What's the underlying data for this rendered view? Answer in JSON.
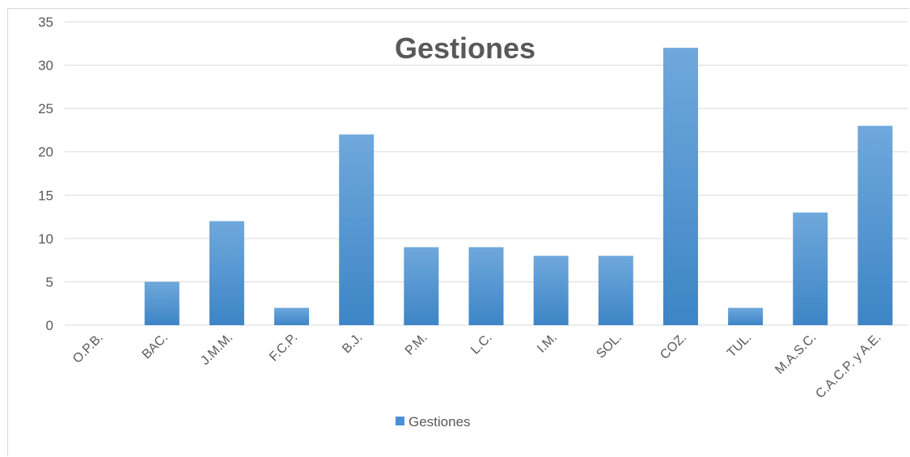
{
  "chart_data": {
    "type": "bar",
    "title": "Gestiones",
    "categories": [
      "O.P.B.",
      "BAC.",
      "J.M.M.",
      "F.C.P.",
      "B.J.",
      "P.M.",
      "L.C.",
      "I.M.",
      "SOL.",
      "COZ.",
      "TUL.",
      "M.A.S.C.",
      "C.A.C.P. y A.E."
    ],
    "series": [
      {
        "name": "Gestiones",
        "values": [
          0,
          5,
          12,
          2,
          22,
          9,
          9,
          8,
          8,
          32,
          2,
          13,
          23
        ]
      }
    ],
    "xlabel": "",
    "ylabel": "",
    "ylim": [
      0,
      35
    ],
    "yticks": [
      0,
      5,
      10,
      15,
      20,
      25,
      30,
      35
    ],
    "grid": true,
    "legend": "bottom",
    "colors": {
      "bar_top": "#6fa8dc",
      "bar_bottom": "#3d85c6",
      "grid": "#d9d9d9",
      "text": "#595959"
    }
  }
}
